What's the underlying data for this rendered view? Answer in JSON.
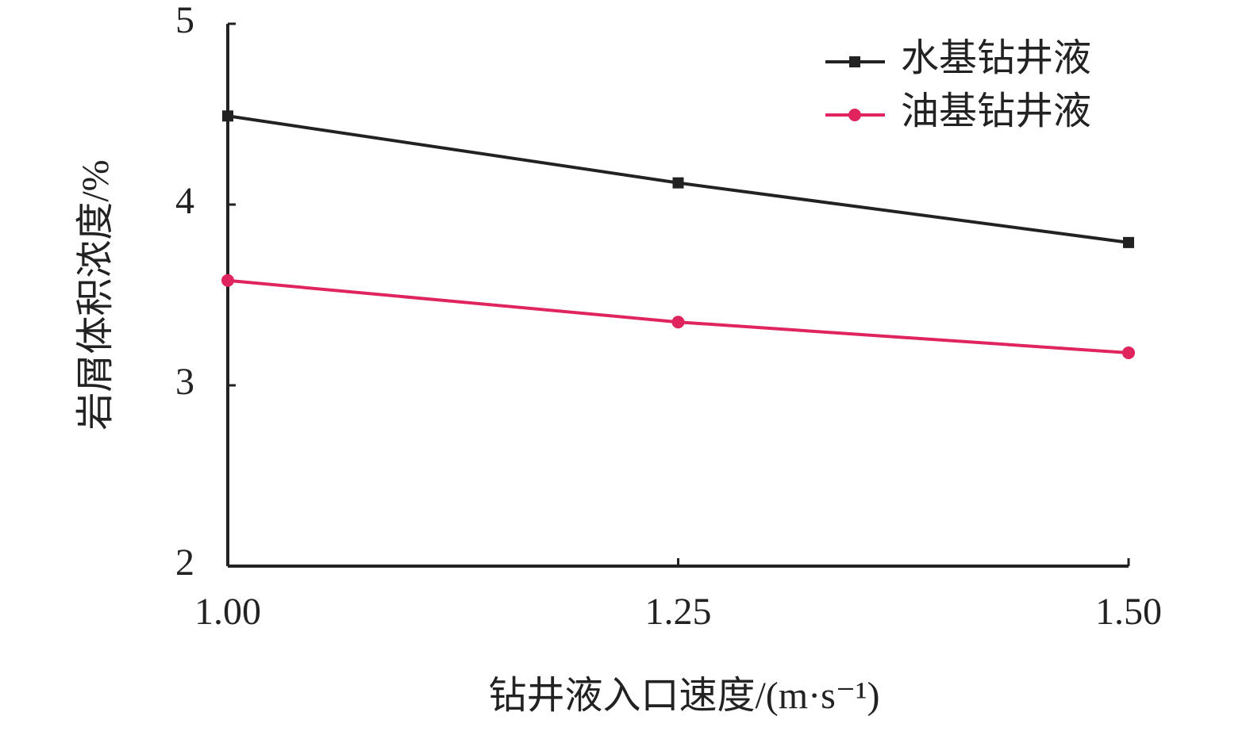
{
  "chart_data": {
    "type": "line",
    "x_label": "钻井液入口速度/(m·s⁻¹)",
    "y_label": "岩屑体积浓度/%",
    "x": [
      1,
      1.25,
      1.5
    ],
    "series": [
      {
        "name": "水基钻井液",
        "color": "#222222",
        "marker": "square",
        "values": [
          4.49,
          4.12,
          3.79
        ]
      },
      {
        "name": "油基钻井液",
        "color": "#e0245e",
        "marker": "circle",
        "values": [
          3.58,
          3.35,
          3.18
        ]
      }
    ],
    "xlim": [
      1,
      1.5
    ],
    "xticks": [
      {
        "value": 1,
        "label": "1.00"
      },
      {
        "value": 1.25,
        "label": "1.25"
      },
      {
        "value": 1.5,
        "label": "1.50"
      }
    ],
    "ylim": [
      2,
      5
    ],
    "yticks": [
      2,
      3,
      4,
      5
    ],
    "legend": "top-right"
  }
}
